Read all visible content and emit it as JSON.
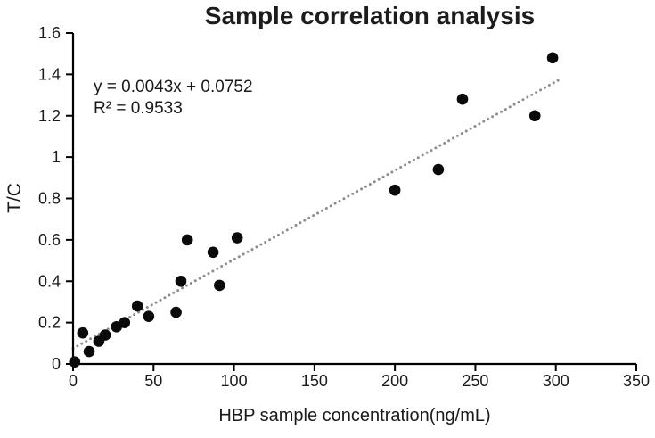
{
  "chart_data": {
    "type": "scatter",
    "title": "Sample correlation analysis",
    "xlabel": "HBP sample concentration(ng/mL)",
    "ylabel": "T/C",
    "annotation": {
      "equation": "y = 0.0043x + 0.0752",
      "r_squared": "R² = 0.9533"
    },
    "xlim": [
      0,
      350
    ],
    "ylim": [
      0,
      1.6
    ],
    "x_tick_values": [
      0,
      50,
      100,
      150,
      200,
      250,
      300,
      350
    ],
    "x_tick_labels": [
      "0",
      "50",
      "100",
      "150",
      "200",
      "250",
      "300",
      "350"
    ],
    "y_tick_values": [
      0,
      0.2,
      0.4,
      0.6,
      0.8,
      1,
      1.2,
      1.4,
      1.6
    ],
    "y_tick_labels": [
      "0",
      "0.2",
      "0.4",
      "0.6",
      "0.8",
      "1",
      "1.2",
      "1.4",
      "1.6"
    ],
    "grid": false,
    "legend": "none",
    "points": [
      [
        1,
        0.01
      ],
      [
        6,
        0.15
      ],
      [
        10,
        0.06
      ],
      [
        16,
        0.11
      ],
      [
        20,
        0.14
      ],
      [
        27,
        0.18
      ],
      [
        32,
        0.2
      ],
      [
        40,
        0.28
      ],
      [
        47,
        0.23
      ],
      [
        64,
        0.25
      ],
      [
        67,
        0.4
      ],
      [
        71,
        0.6
      ],
      [
        87,
        0.54
      ],
      [
        91,
        0.38
      ],
      [
        102,
        0.61
      ],
      [
        200,
        0.84
      ],
      [
        227,
        0.94
      ],
      [
        242,
        1.28
      ],
      [
        287,
        1.2
      ],
      [
        298,
        1.48
      ]
    ],
    "trendline": {
      "style": "dotted",
      "slope": 0.0043,
      "intercept": 0.0752,
      "x_start": 0,
      "x_end": 302,
      "color": "#8c8c8c"
    },
    "colors": {
      "point": "#0a0a0a",
      "axis": "#000000",
      "text": "#1a1a1a",
      "background": "#ffffff"
    }
  }
}
